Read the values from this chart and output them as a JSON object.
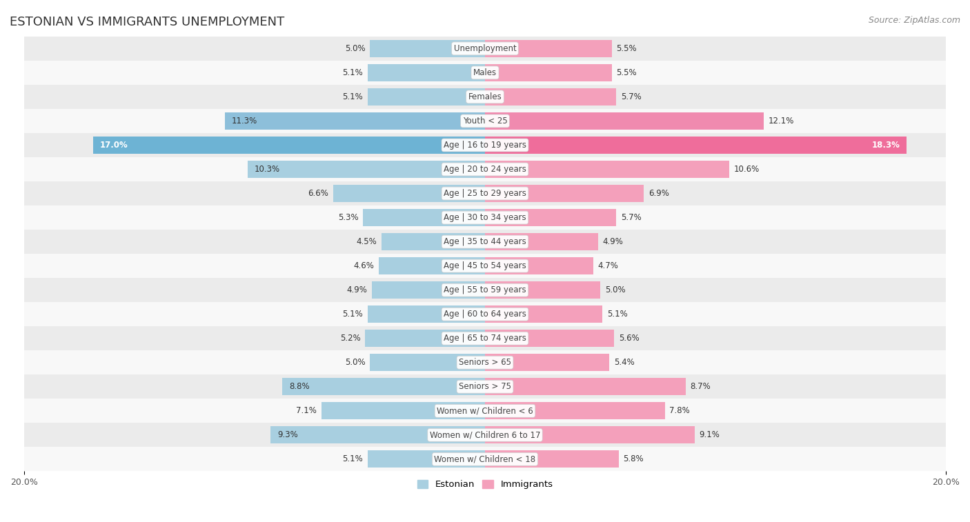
{
  "title": "ESTONIAN VS IMMIGRANTS UNEMPLOYMENT",
  "source": "Source: ZipAtlas.com",
  "categories": [
    "Unemployment",
    "Males",
    "Females",
    "Youth < 25",
    "Age | 16 to 19 years",
    "Age | 20 to 24 years",
    "Age | 25 to 29 years",
    "Age | 30 to 34 years",
    "Age | 35 to 44 years",
    "Age | 45 to 54 years",
    "Age | 55 to 59 years",
    "Age | 60 to 64 years",
    "Age | 65 to 74 years",
    "Seniors > 65",
    "Seniors > 75",
    "Women w/ Children < 6",
    "Women w/ Children 6 to 17",
    "Women w/ Children < 18"
  ],
  "estonian": [
    5.0,
    5.1,
    5.1,
    11.3,
    17.0,
    10.3,
    6.6,
    5.3,
    4.5,
    4.6,
    4.9,
    5.1,
    5.2,
    5.0,
    8.8,
    7.1,
    9.3,
    5.1
  ],
  "immigrants": [
    5.5,
    5.5,
    5.7,
    12.1,
    18.3,
    10.6,
    6.9,
    5.7,
    4.9,
    4.7,
    5.0,
    5.1,
    5.6,
    5.4,
    8.7,
    7.8,
    9.1,
    5.8
  ],
  "estonian_color": "#a8cfe0",
  "immigrants_color": "#f4a0bb",
  "highlight_estonian": "#6db3d4",
  "highlight_immigrants": "#ef6d9b",
  "row_bg_odd": "#ebebeb",
  "row_bg_even": "#f8f8f8",
  "bar_height": 0.72,
  "xlim": 20.0,
  "title_fontsize": 13,
  "label_fontsize": 8.5,
  "value_fontsize": 8.5,
  "source_fontsize": 9
}
